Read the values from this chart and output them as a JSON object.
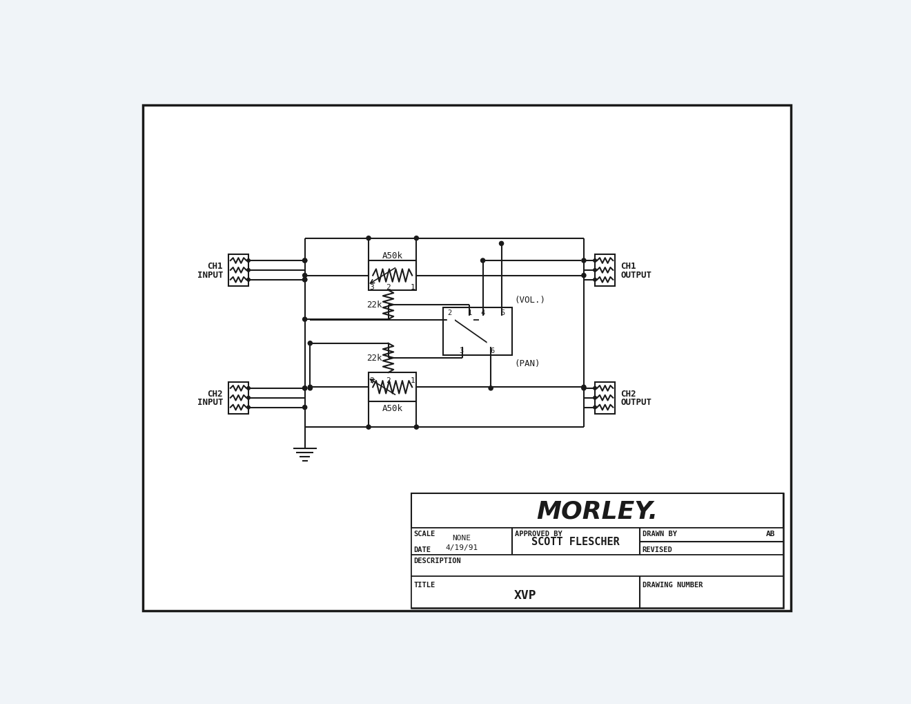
{
  "bg_color": "#f0f4f8",
  "page_bg": "#ffffff",
  "line_color": "#1a1a1a",
  "morley_text": "MORLEY.",
  "scale_label": "SCALE",
  "scale_val": "NONE",
  "approved_label": "APPROVED BY",
  "approved_val": "SCOTT FLESCHER",
  "drawn_label": "DRAWN BY",
  "drawn_val": "AB",
  "date_label": "DATE",
  "date_val": "4/19/91",
  "revised_label": "REVISED",
  "desc_label": "DESCRIPTION",
  "title_label": "TITLE",
  "title_val": "XVP",
  "drawing_number_label": "DRAWING NUMBER",
  "vol_label": "(VOL.)",
  "pan_label": "(PAN)",
  "a50k_top": "A50k",
  "a50k_bot": "A50k",
  "r22k_top": "22k",
  "r22k_bot": "22k"
}
